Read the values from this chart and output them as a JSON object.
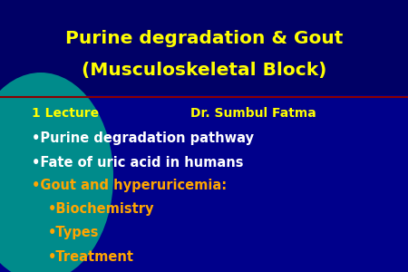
{
  "title_line1": "Purine degradation & Gout",
  "title_line2": "(Musculoskeletal Block)",
  "title_color": "#FFFF00",
  "subtitle_left": "1 Lecture",
  "subtitle_right": "Dr. Sumbul Fatma",
  "subtitle_color": "#FFFF00",
  "bg_color": "#00008B",
  "bg_color_title": "#000066",
  "teal_color": "#008B8B",
  "separator_color": "#8B0000",
  "bullet_items": [
    {
      "text": "Purine degradation pathway",
      "color": "#FFFFFF",
      "indent": 0
    },
    {
      "text": "Fate of uric acid in humans",
      "color": "#FFFFFF",
      "indent": 0
    },
    {
      "text": "Gout and hyperuricemia:",
      "color": "#FFA500",
      "indent": 0
    },
    {
      "text": "Biochemistry",
      "color": "#FFA500",
      "indent": 1
    },
    {
      "text": "Types",
      "color": "#FFA500",
      "indent": 1
    },
    {
      "text": "Treatment",
      "color": "#FFA500",
      "indent": 1
    }
  ],
  "title_fontsize": 14.5,
  "subtitle_fontsize": 10,
  "bullet_fontsize": 10.5,
  "figwidth": 4.5,
  "figheight": 3.0
}
